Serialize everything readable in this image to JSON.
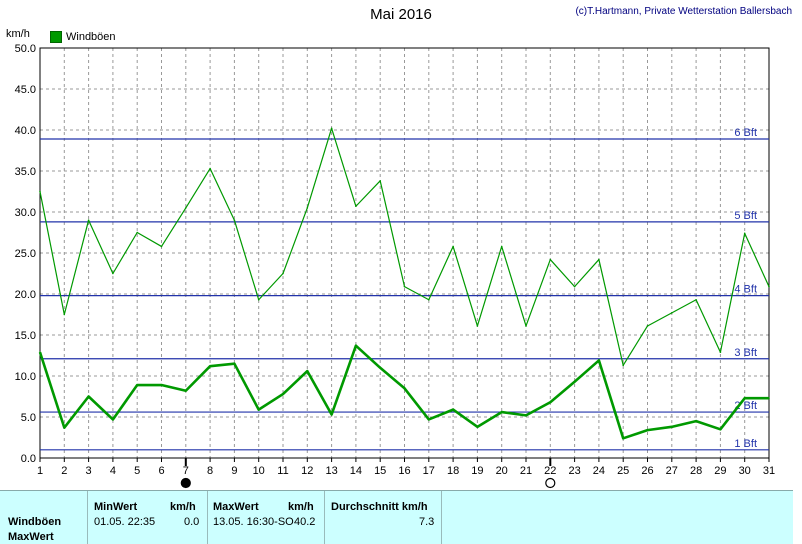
{
  "header": {
    "title": "Mai 2016",
    "credit": "(c)T.Hartmann, Private Wetterstation Ballersbach",
    "unit": "km/h",
    "legend_label": "Windböen"
  },
  "chart_data": {
    "type": "line",
    "title": "Mai 2016",
    "ylabel": "km/h",
    "xlabel": "",
    "ylim": [
      0,
      50
    ],
    "grid": true,
    "legend": "top-left",
    "x": [
      1,
      2,
      3,
      4,
      5,
      6,
      7,
      8,
      9,
      10,
      11,
      12,
      13,
      14,
      15,
      16,
      17,
      18,
      19,
      20,
      21,
      22,
      23,
      24,
      25,
      26,
      27,
      28,
      29,
      30,
      31
    ],
    "y_ticks": [
      "0.0",
      "5.0",
      "10.0",
      "15.0",
      "20.0",
      "25.0",
      "30.0",
      "35.0",
      "40.0",
      "45.0",
      "50.0"
    ],
    "series": [
      {
        "name": "Windböen",
        "color": "#009900",
        "values": [
          32.5,
          17.5,
          29,
          22.5,
          27.5,
          25.8,
          30.5,
          35.3,
          29,
          19.3,
          22.5,
          30.5,
          40.2,
          30.7,
          33.8,
          20.9,
          19.3,
          25.8,
          16.1,
          25.8,
          16.1,
          24.2,
          20.9,
          24.2,
          11.3,
          16.1,
          17.7,
          19.3,
          12.9,
          27.4,
          20.9
        ]
      },
      {
        "color": "#009900",
        "values": [
          12.9,
          3.7,
          7.5,
          4.7,
          8.9,
          8.9,
          8.2,
          11.2,
          11.5,
          5.9,
          7.8,
          10.6,
          5.3,
          13.7,
          11.0,
          8.5,
          4.7,
          5.9,
          3.8,
          5.6,
          5.2,
          6.8,
          9.3,
          11.9,
          2.4,
          3.4,
          3.8,
          4.5,
          3.5,
          7.3,
          7.3
        ]
      }
    ],
    "beaufort_lines": [
      {
        "label": "1 Bft",
        "value": 1.0
      },
      {
        "label": "2 Bft",
        "value": 5.6
      },
      {
        "label": "3 Bft",
        "value": 12.1
      },
      {
        "label": "4 Bft",
        "value": 19.8
      },
      {
        "label": "5 Bft",
        "value": 28.8
      },
      {
        "label": "6 Bft",
        "value": 38.9
      }
    ],
    "moon_markers": [
      {
        "day": 7,
        "phase": "new"
      },
      {
        "day": 22,
        "phase": "full"
      }
    ]
  },
  "stats_panel": {
    "row_labels": [
      "Windböen",
      "MaxWert"
    ],
    "min_header": "MinWert",
    "min_unit": "km/h",
    "min_time": "01.05.  22:35",
    "min_value": "0.0",
    "max_header": "MaxWert",
    "max_unit": "km/h",
    "max_time": "13.05.  16:30-SO",
    "max_value": "40.2",
    "avg_header": "Durchschnitt km/h",
    "avg_value": "7.3"
  }
}
